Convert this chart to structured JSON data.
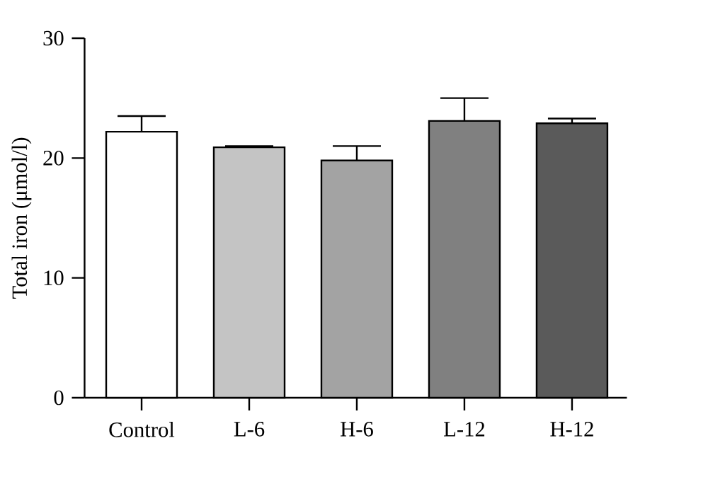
{
  "chart_data": {
    "type": "bar",
    "ylabel": "Total iron (μmol/l)",
    "categories": [
      "Control",
      "L-6",
      "H-6",
      "L-12",
      "H-12"
    ],
    "values": [
      22.2,
      20.9,
      19.8,
      23.1,
      22.9
    ],
    "errors": [
      [
        22.2,
        23.5
      ],
      [
        20.9,
        21.0
      ],
      [
        19.8,
        21.0
      ],
      [
        23.1,
        25.0
      ],
      [
        22.9,
        23.3
      ]
    ],
    "colors": [
      "#ffffff",
      "#c4c4c4",
      "#a3a3a3",
      "#808080",
      "#5a5a5a"
    ],
    "ylim": [
      0,
      30
    ],
    "yticks": [
      0,
      10,
      20,
      30
    ],
    "grid": false
  }
}
